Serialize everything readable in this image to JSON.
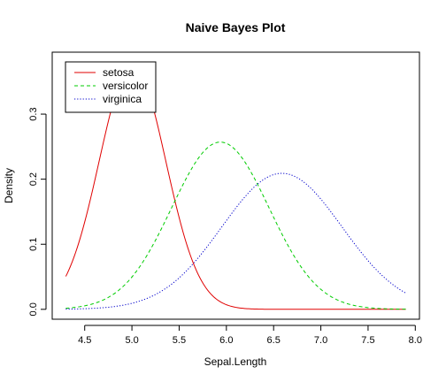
{
  "chart_data": {
    "type": "line",
    "title": "Naive Bayes Plot",
    "xlabel": "Sepal.Length",
    "ylabel": "Density",
    "xlim": [
      4.3,
      7.9
    ],
    "ylim": [
      0,
      0.38
    ],
    "x_ticks": [
      "4.5",
      "5.0",
      "5.5",
      "6.0",
      "6.5",
      "7.0",
      "7.5",
      "8.0"
    ],
    "y_ticks": [
      "0.0",
      "0.1",
      "0.2",
      "0.3"
    ],
    "legend_position": "top-left",
    "grid": false,
    "series": [
      {
        "name": "setosa",
        "color": "#e00000",
        "dash": "solid",
        "mean": 5.006,
        "sd": 0.3525,
        "peak": 0.376
      },
      {
        "name": "versicolor",
        "color": "#00cc00",
        "dash": "dashed",
        "mean": 5.936,
        "sd": 0.5162,
        "peak": 0.257
      },
      {
        "name": "virginica",
        "color": "#0000cc",
        "dash": "dotted",
        "mean": 6.588,
        "sd": 0.6359,
        "peak": 0.209
      }
    ]
  }
}
